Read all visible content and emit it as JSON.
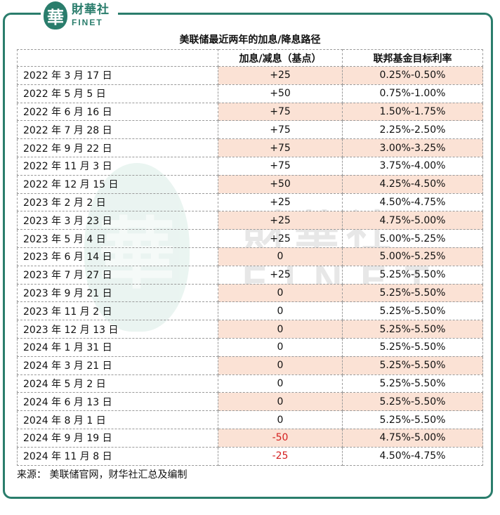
{
  "logo": {
    "seal_char": "華",
    "name_cn": "財華社",
    "name_en": "FINET"
  },
  "title": "美联储最近两年的加息/降息路径",
  "table": {
    "headers": [
      "",
      "加息/减息（基点）",
      "联邦基金目标利率"
    ],
    "rows": [
      {
        "date": "2022 年 3 月 17 日",
        "change": "+25",
        "rate": "0.25%-0.50%"
      },
      {
        "date": "2022 年 5 月 5 日",
        "change": "+50",
        "rate": "0.75%-1.00%"
      },
      {
        "date": "2022 年 6 月 16 日",
        "change": "+75",
        "rate": "1.50%-1.75%"
      },
      {
        "date": "2022 年 7 月 28 日",
        "change": "+75",
        "rate": "2.25%-2.50%"
      },
      {
        "date": "2022 年 9 月 22 日",
        "change": "+75",
        "rate": "3.00%-3.25%"
      },
      {
        "date": "2022 年 11 月 3 日",
        "change": "+75",
        "rate": "3.75%-4.00%"
      },
      {
        "date": "2022 年 12 月 15 日",
        "change": "+50",
        "rate": "4.25%-4.50%"
      },
      {
        "date": "2023 年 2 月 2 日",
        "change": "+25",
        "rate": "4.50%-4.75%"
      },
      {
        "date": "2023 年 3 月 23 日",
        "change": "+25",
        "rate": "4.75%-5.00%"
      },
      {
        "date": "2023 年 5 月 4 日",
        "change": "+25",
        "rate": "5.00%-5.25%"
      },
      {
        "date": "2023 年 6 月 14 日",
        "change": "0",
        "rate": "5.00%-5.25%"
      },
      {
        "date": "2023 年 7 月 27 日",
        "change": "+25",
        "rate": "5.25%-5.50%"
      },
      {
        "date": "2023 年 9 月 21 日",
        "change": "0",
        "rate": "5.25%-5.50%"
      },
      {
        "date": "2023 年 11 月 2 日",
        "change": "0",
        "rate": "5.25%-5.50%"
      },
      {
        "date": "2023 年 12 月 13 日",
        "change": "0",
        "rate": "5.25%-5.50%"
      },
      {
        "date": "2024 年 1 月 31 日",
        "change": "0",
        "rate": "5.25%-5.50%"
      },
      {
        "date": "2024 年 3 月 21 日",
        "change": "0",
        "rate": "5.25%-5.50%"
      },
      {
        "date": "2024 年 5 月 2 日",
        "change": "0",
        "rate": "5.25%-5.50%"
      },
      {
        "date": "2024 年 6 月 13 日",
        "change": "0",
        "rate": "5.25%-5.50%"
      },
      {
        "date": "2024 年 8 月 1 日",
        "change": "0",
        "rate": "5.25%-5.50%"
      },
      {
        "date": "2024 年 9 月 19 日",
        "change": "-50",
        "rate": "4.75%-5.00%"
      },
      {
        "date": "2024 年 11 月 8 日",
        "change": "-25",
        "rate": "4.50%-4.75%"
      }
    ]
  },
  "source": "来源：  美联储官网，财华社汇总及编制",
  "watermark": {
    "seal_char": "華",
    "name_cn": "財華社",
    "name_en": "FINET"
  },
  "colors": {
    "frame": "#2a7d6c",
    "shade": "#fbe2d5",
    "negative": "#d42020"
  }
}
